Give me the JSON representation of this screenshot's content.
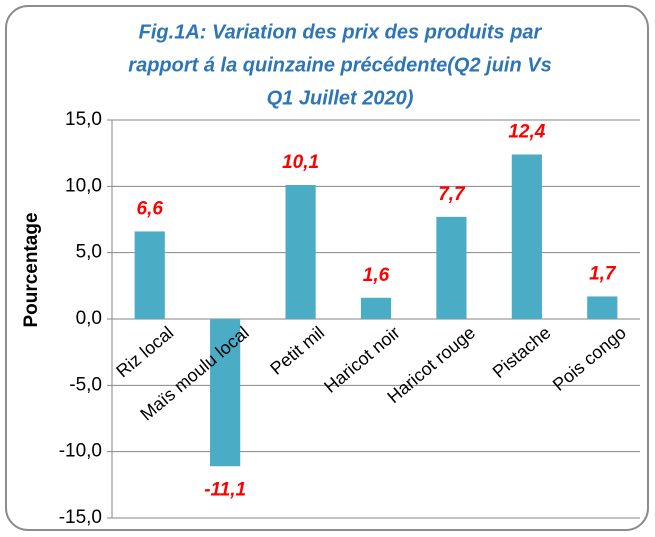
{
  "chart_data": {
    "type": "bar",
    "title": [
      "Fig.1A: Variation des prix des produits par",
      "rapport á la quinzaine précédente(Q2 juin Vs",
      "Q1 Juillet 2020)"
    ],
    "y_label": "Pourcentage",
    "categories": [
      "Riz local",
      "Maïs moulu  local",
      "Petit mil",
      "Haricot noir",
      "Haricot rouge",
      "Pistache",
      "Pois congo"
    ],
    "values": [
      6.6,
      -11.1,
      10.1,
      1.6,
      7.7,
      12.4,
      1.7
    ],
    "value_labels": [
      "6,6",
      "-11,1",
      "10,1",
      "1,6",
      "7,7",
      "12,4",
      "1,7"
    ],
    "color": "#4bacc6",
    "ylim": [
      -15,
      15
    ],
    "yticks": [
      {
        "value": -15,
        "label": "-15,0"
      },
      {
        "value": -10,
        "label": "-10,0"
      },
      {
        "value": -5,
        "label": "-5,0"
      },
      {
        "value": 0,
        "label": "0,0"
      },
      {
        "value": 5,
        "label": "5,0"
      },
      {
        "value": 10,
        "label": "10,0"
      },
      {
        "value": 15,
        "label": "15,0"
      }
    ],
    "grid": true
  }
}
